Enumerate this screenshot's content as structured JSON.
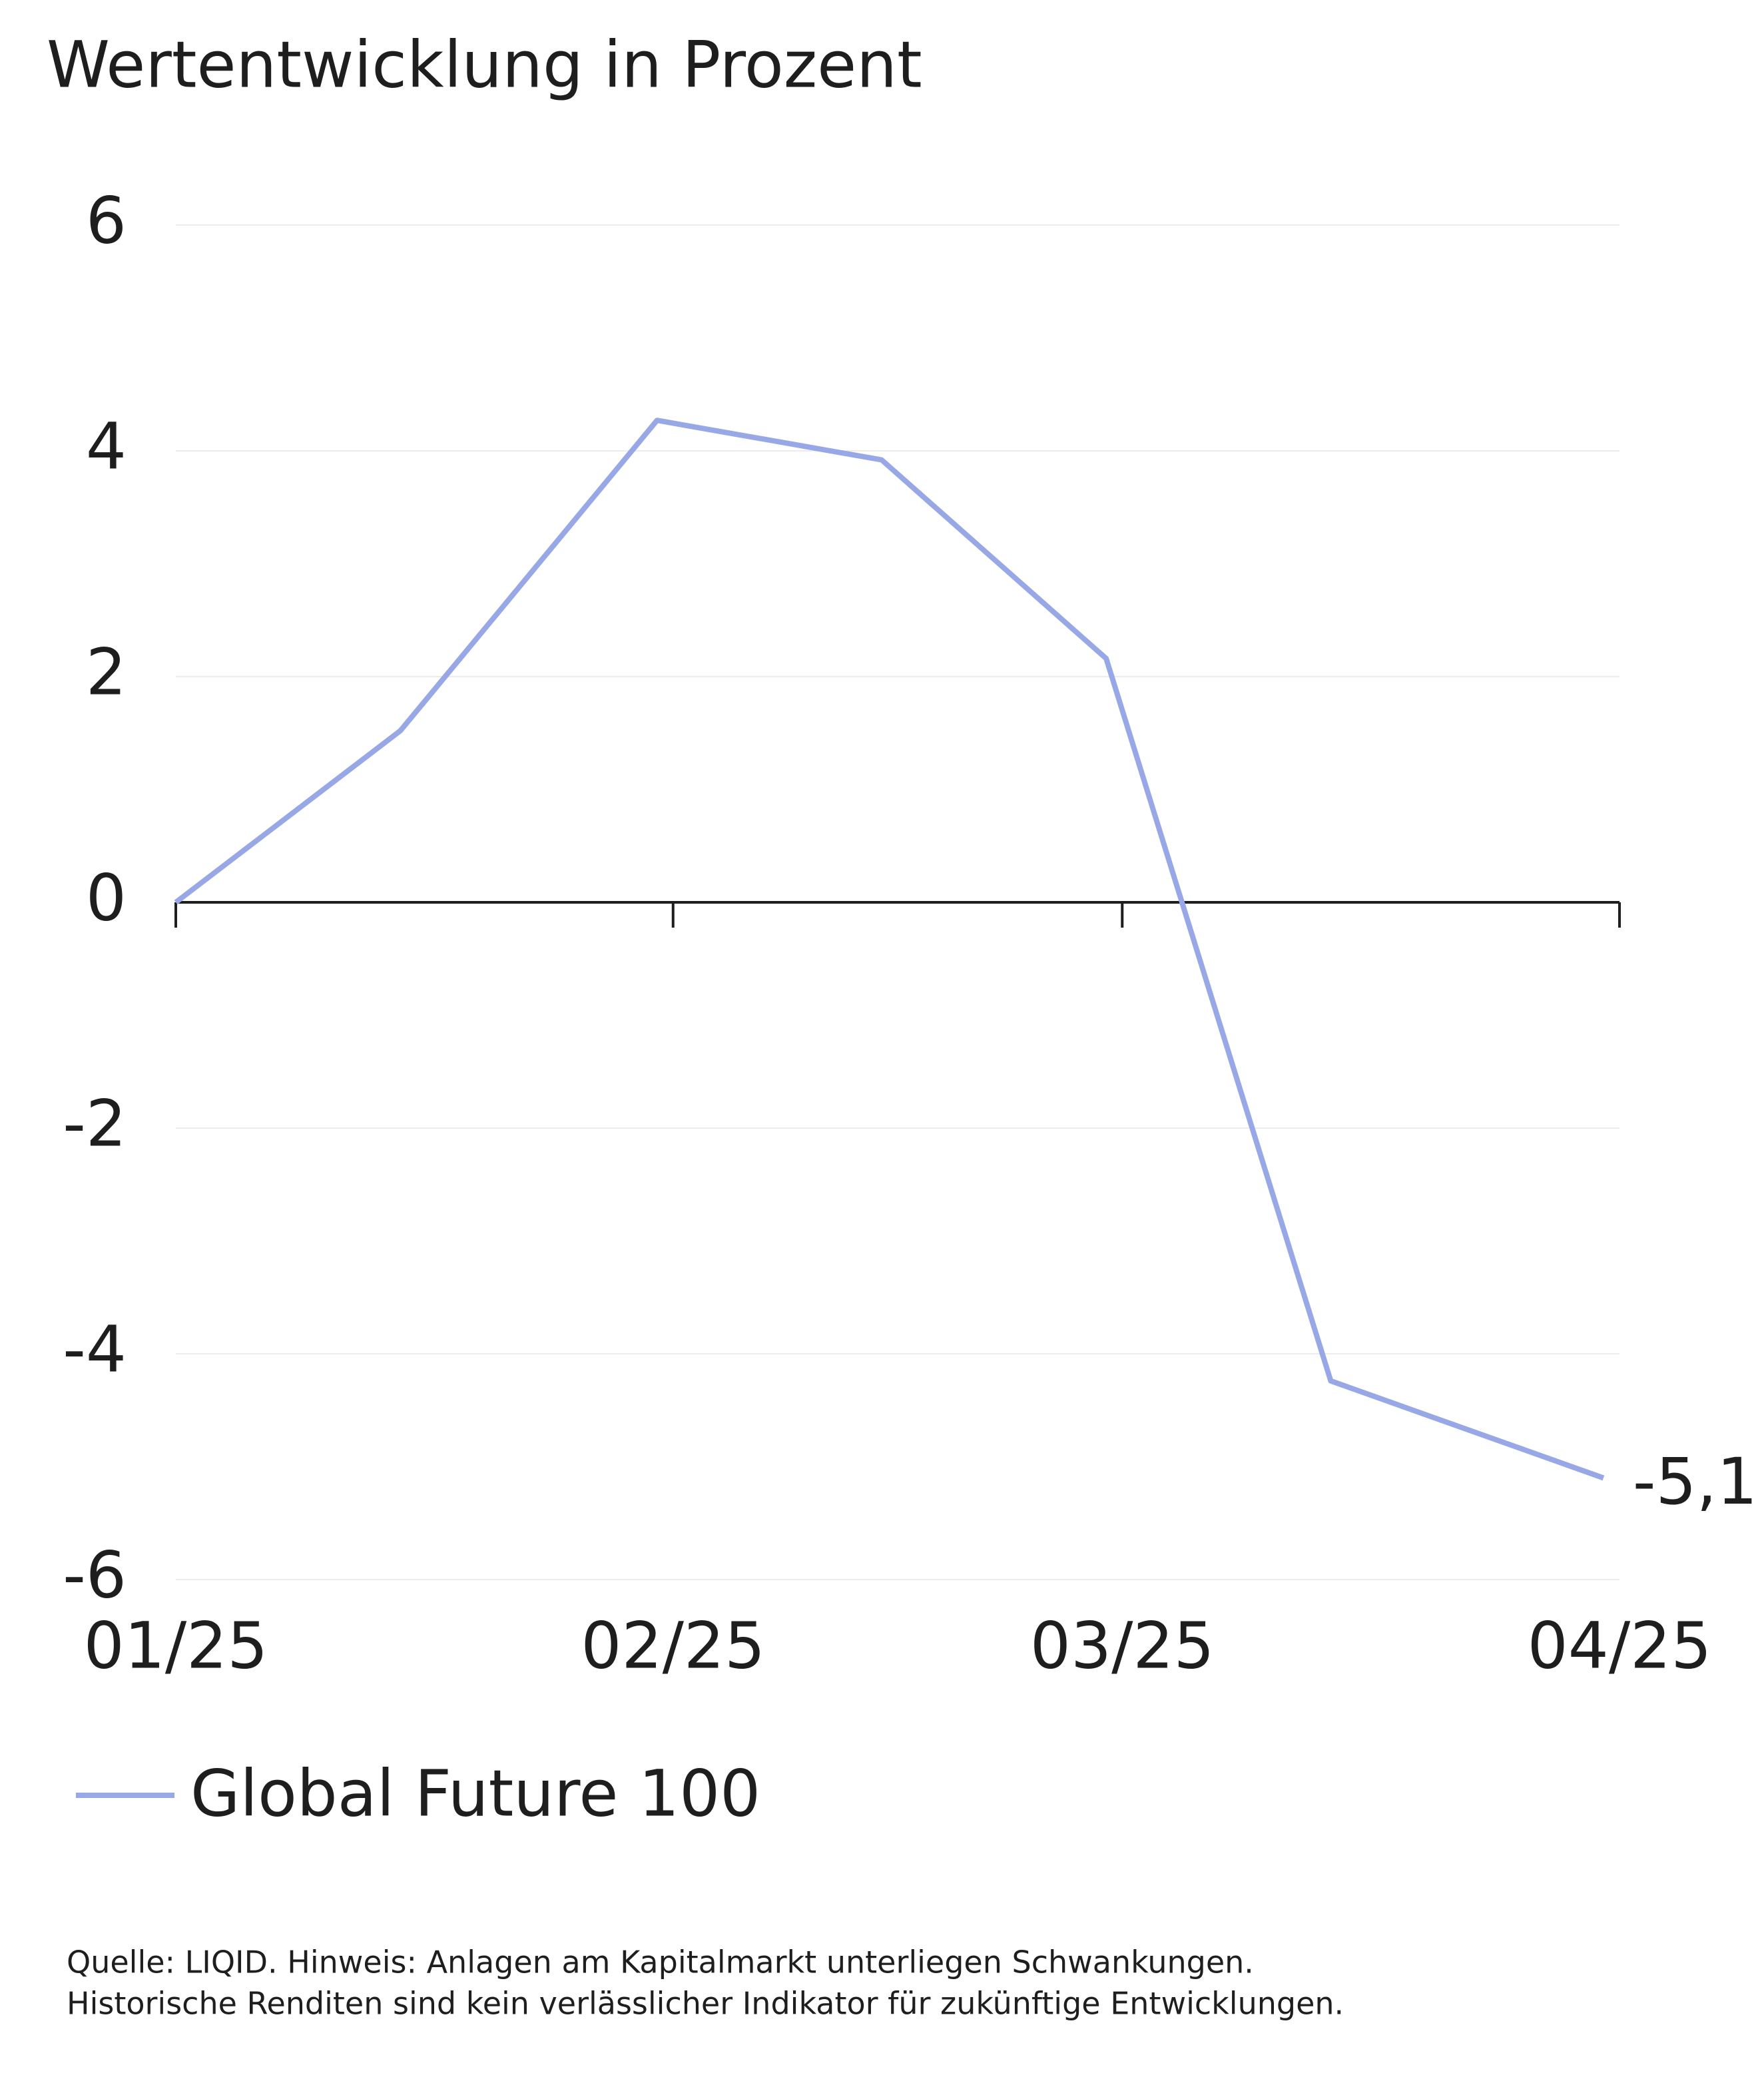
{
  "chart_data": {
    "type": "line",
    "title": "Wertentwicklung in Prozent",
    "x": [
      0,
      14,
      30,
      44,
      58,
      72,
      89
    ],
    "xlim": [
      0,
      90
    ],
    "xticks": [
      {
        "value": 0,
        "label": "01/25"
      },
      {
        "value": 31,
        "label": "02/25"
      },
      {
        "value": 59,
        "label": "03/25"
      },
      {
        "value": 90,
        "label": "04/25"
      }
    ],
    "ylim": [
      -6,
      6
    ],
    "yticks": [
      6,
      4,
      2,
      0,
      -2,
      -4,
      -6
    ],
    "grid": true,
    "series": [
      {
        "name": "Global Future 100",
        "color": "#98a8e6",
        "values": [
          0,
          1.52,
          4.27,
          3.92,
          2.16,
          -4.24,
          -5.1
        ],
        "value_labels": [
          null,
          null,
          null,
          null,
          null,
          null,
          "-5,1"
        ]
      }
    ],
    "legend": "bottom-left",
    "footnote": [
      "Quelle: LIQID. Hinweis: Anlagen am Kapitalmarkt unterliegen Schwankungen.",
      "Historische Renditen sind kein verlässlicher Indikator für zukünftige Entwicklungen."
    ]
  }
}
